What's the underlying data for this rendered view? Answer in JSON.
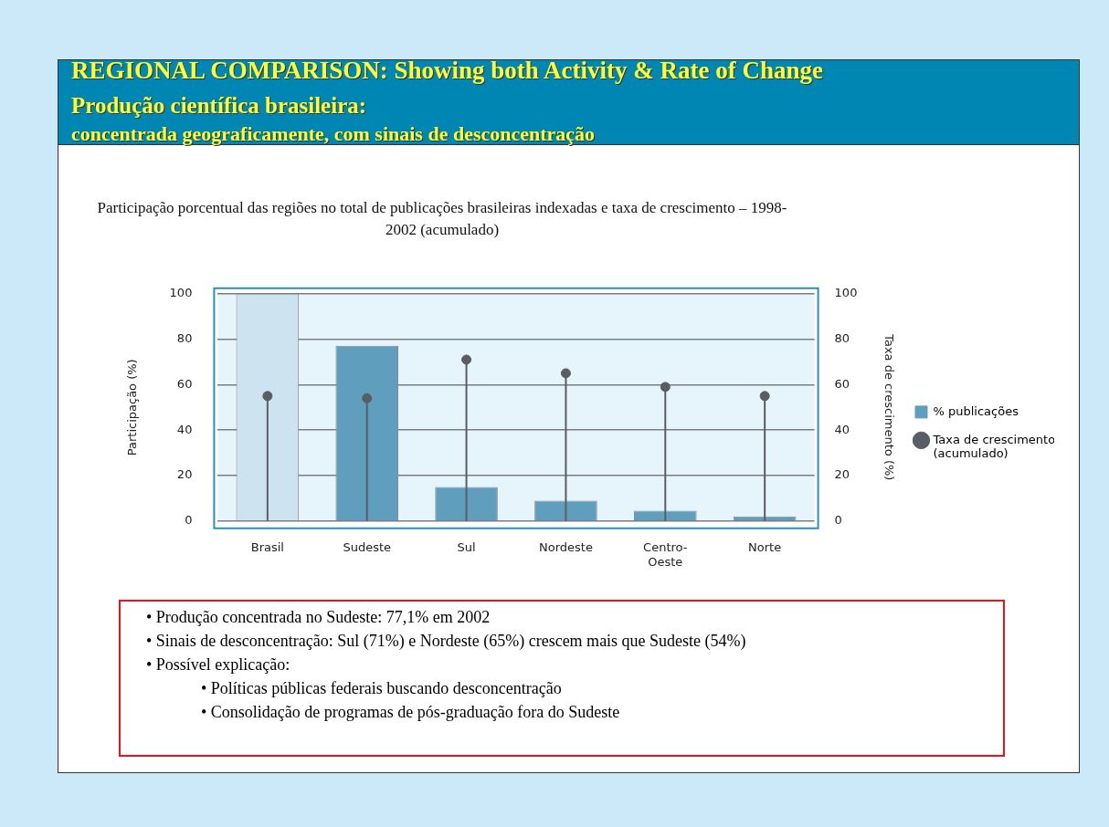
{
  "chart_data": {
    "type": "bar",
    "title": "REGIONAL COMPARISON: Showing both Activity & Rate of Change",
    "subtitle": "Participação porcentual das regiões no total de publicações brasileiras indexadas e taxa de crescimento – 1998-2002 (acumulado)",
    "ylabel": "Participação (%)",
    "y2label": "Taxa de crescimento (%)",
    "categories": [
      "Brasil",
      "Sudeste",
      "Sul",
      "Nordeste",
      "Centro-Oeste",
      "Norte"
    ],
    "series": [
      {
        "name": "% publicações",
        "color": "#5f9fbd",
        "colors": [
          "#cde4f0",
          "#5f9fbd",
          "#5f9fbd",
          "#5f9fbd",
          "#5f9fbd",
          "#5f9fbd"
        ],
        "values": [
          100,
          77.1,
          15,
          9,
          4.5,
          2
        ]
      },
      {
        "type": "lollipop",
        "axis": "y2",
        "name": "Taxa de crescimento (acumulado)",
        "color": "#5a5d63",
        "values": [
          55,
          54,
          71,
          65,
          59,
          55
        ]
      }
    ],
    "ylim": [
      0,
      100
    ],
    "yticks": [
      0,
      20,
      40,
      60,
      80,
      100
    ],
    "y2lim": [
      0,
      100
    ],
    "y2ticks": [
      0,
      20,
      40,
      60,
      80,
      100
    ],
    "grid": "y",
    "legend": "right",
    "marker": "circle",
    "annotations": [
      "Produção científica brasileira:",
      "concentrada geograficamente, com sinais de desconcentração",
      "• Produção concentrada no Sudeste: 77,1% em 2002",
      "• Sinais de desconcentração: Sul (71%) e Nordeste (65%) crescem mais que Sudeste (54%)",
      "• Possível explicação:",
      "• Políticas públicas federais buscando desconcentração",
      "• Consolidação de programas de pós-graduação fora do Sudeste"
    ]
  }
}
